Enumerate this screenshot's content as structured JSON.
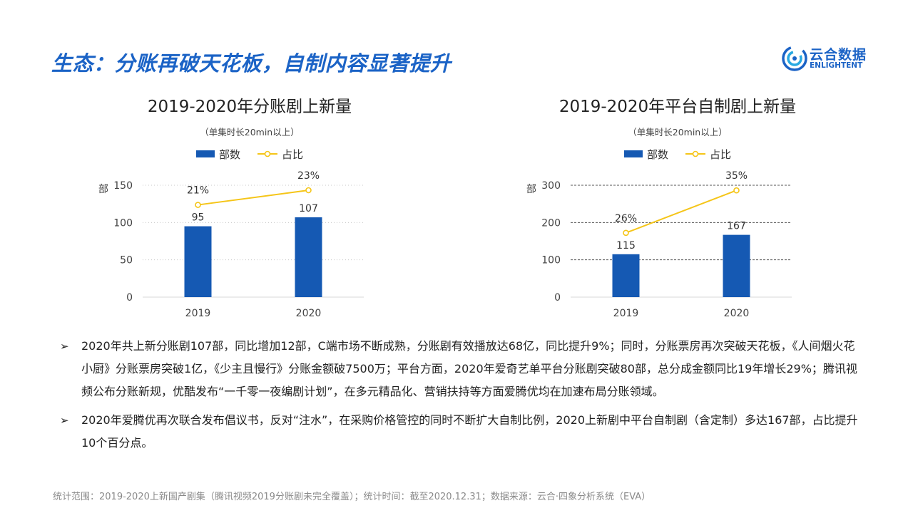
{
  "title": "生态：分账再破天花板，自制内容显著提升",
  "logo": {
    "cn": "云合数据",
    "en": "ENLIGHTENT"
  },
  "colors": {
    "bar": "#1559b3",
    "line": "#f5c518",
    "title": "#1b63c6"
  },
  "chart_data": [
    {
      "type": "bar",
      "title": "2019-2020年分账剧上新量",
      "subtitle": "（单集时长20min以上）",
      "ylabel": "部",
      "ylim": [
        0,
        150
      ],
      "yticks": [
        "0",
        "50",
        "100",
        "150"
      ],
      "categories": [
        "2019",
        "2020"
      ],
      "grid": "dotted",
      "legend_position": "top",
      "series": [
        {
          "name": "部数",
          "type": "bar",
          "values": [
            95,
            107
          ],
          "labels": [
            "95",
            "107"
          ]
        },
        {
          "name": "占比",
          "type": "line",
          "values": [
            21,
            23
          ],
          "labels": [
            "21%",
            "23%"
          ]
        }
      ]
    },
    {
      "type": "bar",
      "title": "2019-2020年平台自制剧上新量",
      "subtitle": "（单集时长20min以上）",
      "ylabel": "部",
      "ylim": [
        0,
        300
      ],
      "yticks": [
        "0",
        "100",
        "200",
        "300"
      ],
      "categories": [
        "2019",
        "2020"
      ],
      "grid": "dashed",
      "legend_position": "top",
      "series": [
        {
          "name": "部数",
          "type": "bar",
          "values": [
            115,
            167
          ],
          "labels": [
            "115",
            "167"
          ]
        },
        {
          "name": "占比",
          "type": "line",
          "values": [
            26,
            35
          ],
          "labels": [
            "26%",
            "35%"
          ]
        }
      ]
    }
  ],
  "bullets": [
    "2020年共上新分账剧107部，同比增加12部，C端市场不断成熟，分账剧有效播放达68亿，同比提升9%；同时，分账票房再次突破天花板，《人间烟火花小厨》分账票房突破1亿，《少主且慢行》分账金额破7500万；平台方面，2020年爱奇艺单平台分账剧突破80部，总分成金额同比19年增长29%；腾讯视频公布分账新规，优酷发布“一千零一夜编剧计划”，在多元精品化、营销扶持等方面爱腾优均在加速布局分账领域。",
    "2020年爱腾优再次联合发布倡议书，反对“注水”，在采购价格管控的同时不断扩大自制比例，2020上新剧中平台自制剧（含定制）多达167部，占比提升10个百分点。"
  ],
  "footer": "统计范围：2019-2020上新国产剧集（腾讯视频2019分账剧未完全覆盖）；统计时间：截至2020.12.31；数据来源：云合·四象分析系统（EVA）"
}
